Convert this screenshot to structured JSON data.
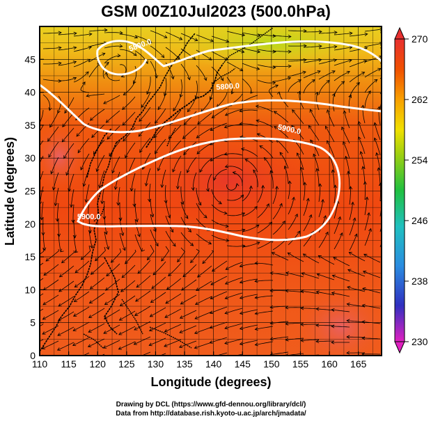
{
  "chart_data": {
    "type": "heatmap",
    "title": "GSM 00Z10Jul2023 (500.0hPa)",
    "xlabel": "Longitude (degrees)",
    "ylabel": "Latitude  (degrees)",
    "xlim": [
      110,
      169
    ],
    "ylim": [
      0,
      50
    ],
    "x_ticks": [
      110,
      115,
      120,
      125,
      130,
      135,
      140,
      145,
      150,
      155,
      160,
      165
    ],
    "y_ticks": [
      0,
      5,
      10,
      15,
      20,
      25,
      30,
      35,
      40,
      45
    ],
    "grid": true,
    "colorbar": {
      "placement": "right",
      "min": 230,
      "max": 270,
      "ticks": [
        270,
        262,
        254,
        246,
        238,
        230
      ],
      "colors": [
        "#e020c0",
        "#3030c0",
        "#2a8ce0",
        "#20c0c0",
        "#20c040",
        "#a0d010",
        "#f0e000",
        "#f8a000",
        "#f05000",
        "#e83030"
      ]
    },
    "overlay": "streamlines (wind)",
    "contours": [
      {
        "value": 5800.0,
        "label": "5800.0"
      },
      {
        "value": 5900.0,
        "label": "5900.0"
      }
    ],
    "contour_label_marks": [
      {
        "text": "5800.0",
        "lon": 127.5,
        "lat": 46.8,
        "angle": -20
      },
      {
        "text": "5800.0",
        "lon": 142.5,
        "lat": 40.5,
        "angle": -4
      },
      {
        "text": "5900.0",
        "lon": 153.0,
        "lat": 34.0,
        "angle": 12
      },
      {
        "text": "5900.0",
        "lon": 118.5,
        "lat": 20.7,
        "angle": 0
      }
    ]
  },
  "credits": {
    "line1": "Drawing by DCL (https://www.gfd-dennou.org/library/dcl/)",
    "line2": "Data from http://database.rish.kyoto-u.ac.jp/arch/jmadata/"
  }
}
